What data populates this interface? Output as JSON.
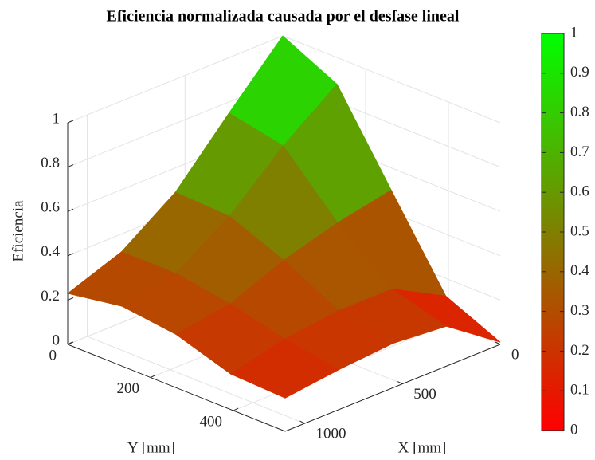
{
  "chart_data": {
    "type": "surface",
    "title": "Eficiencia normalizada causada por el desfase lineal",
    "xlabel": "X [mm]",
    "ylabel": "Y [mm]",
    "zlabel": "Eficiencia",
    "x": [
      0,
      275,
      550,
      825,
      1100
    ],
    "y": [
      0,
      131,
      262,
      394,
      525
    ],
    "z": [
      [
        1.0,
        0.88,
        0.5,
        0.12,
        0.01
      ],
      [
        0.75,
        0.7,
        0.45,
        0.25,
        0.18
      ],
      [
        0.49,
        0.48,
        0.38,
        0.25,
        0.2
      ],
      [
        0.32,
        0.32,
        0.28,
        0.22,
        0.18
      ],
      [
        0.23,
        0.27,
        0.24,
        0.16,
        0.15
      ]
    ],
    "xlim": [
      0,
      1100
    ],
    "ylim": [
      0,
      525
    ],
    "zlim": [
      0,
      1
    ],
    "xticks": [
      0,
      500,
      1000
    ],
    "yticks": [
      0,
      200,
      400
    ],
    "zticks": [
      0,
      0.2,
      0.4,
      0.6,
      0.8,
      1
    ],
    "colormap": [
      "#ff0000",
      "#00ff00"
    ],
    "clim": [
      0,
      1
    ],
    "cticks": [
      0,
      0.1,
      0.2,
      0.3,
      0.4,
      0.5,
      0.6,
      0.7,
      0.8,
      0.9,
      1
    ],
    "grid": true,
    "colorbar": true
  }
}
